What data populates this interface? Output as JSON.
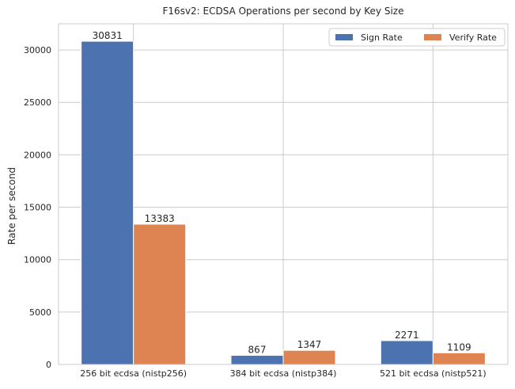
{
  "chart_data": {
    "type": "bar",
    "title": "F16sv2: ECDSA Operations per second by Key Size",
    "xlabel": "",
    "ylabel": "Rate per second",
    "categories": [
      "256 bit ecdsa (nistp256)",
      "384 bit ecdsa (nistp384)",
      "521 bit ecdsa (nistp521)"
    ],
    "series": [
      {
        "name": "Sign Rate",
        "color": "#4c72b0",
        "values": [
          30831,
          867,
          2271
        ]
      },
      {
        "name": "Verify Rate",
        "color": "#dd8452",
        "values": [
          13383,
          1347,
          1109
        ]
      }
    ],
    "ylim": [
      0,
      32500
    ],
    "yticks": [
      0,
      5000,
      10000,
      15000,
      20000,
      25000,
      30000
    ],
    "grid": true,
    "legend_position": "top-right",
    "data_labels": true
  }
}
